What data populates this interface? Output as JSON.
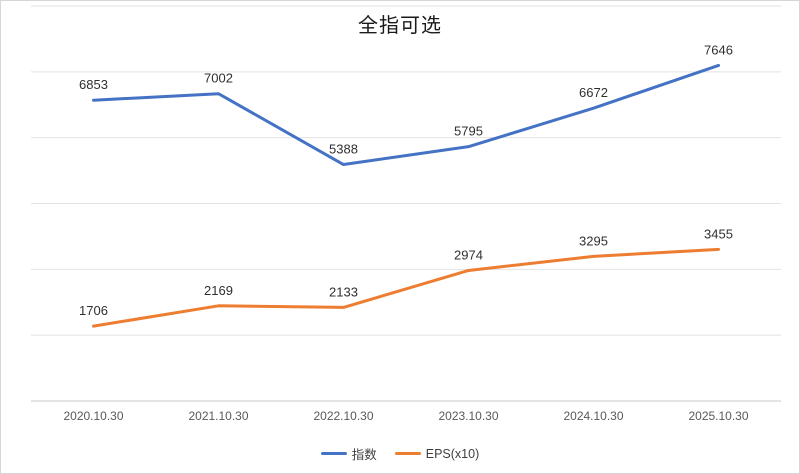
{
  "chart": {
    "title": "全指可选"
  },
  "chart_data": {
    "type": "line",
    "title": "全指可选",
    "categories": [
      "2020.10.30",
      "2021.10.30",
      "2022.10.30",
      "2023.10.30",
      "2024.10.30",
      "2025.10.30"
    ],
    "series": [
      {
        "name": "指数",
        "color": "#4472c4",
        "values": [
          6853,
          7002,
          5388,
          5795,
          6672,
          7646
        ]
      },
      {
        "name": "EPS(x10)",
        "color": "#ed7d31",
        "values": [
          1706,
          2169,
          2133,
          2974,
          3295,
          3455
        ]
      }
    ],
    "xlabel": "",
    "ylabel": "",
    "ylim": [
      0,
      9000
    ],
    "grid": true,
    "grid_interval": 1500,
    "grid_color": "#e2e2e2",
    "axis_color": "#c9c9c9",
    "data_label_color": "#303030",
    "legend_position": "bottom"
  }
}
